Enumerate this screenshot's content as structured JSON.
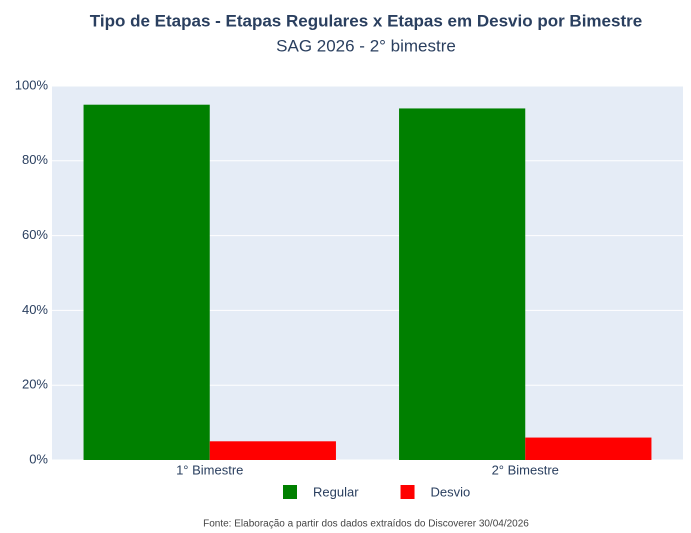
{
  "chart_data": {
    "type": "bar",
    "title": "Tipo de Etapas - Etapas Regulares x Etapas em Desvio por Bimestre",
    "subtitle": "SAG 2026 - 2° bimestre",
    "categories": [
      "1° Bimestre",
      "2° Bimestre"
    ],
    "series": [
      {
        "name": "Regular",
        "color": "#008000",
        "values": [
          95,
          94
        ]
      },
      {
        "name": "Desvio",
        "color": "#ff0000",
        "values": [
          5,
          6
        ]
      }
    ],
    "ylim": [
      0,
      100
    ],
    "yticks": [
      {
        "value": 0,
        "label": "0%"
      },
      {
        "value": 20,
        "label": "20%"
      },
      {
        "value": 40,
        "label": "40%"
      },
      {
        "value": 60,
        "label": "60%"
      },
      {
        "value": 80,
        "label": "80%"
      },
      {
        "value": 100,
        "label": "100%"
      }
    ],
    "grid": true,
    "legend": "bottom",
    "source": "Fonte: Elaboração a partir dos dados extraídos do Discoverer 30/04/2026"
  }
}
